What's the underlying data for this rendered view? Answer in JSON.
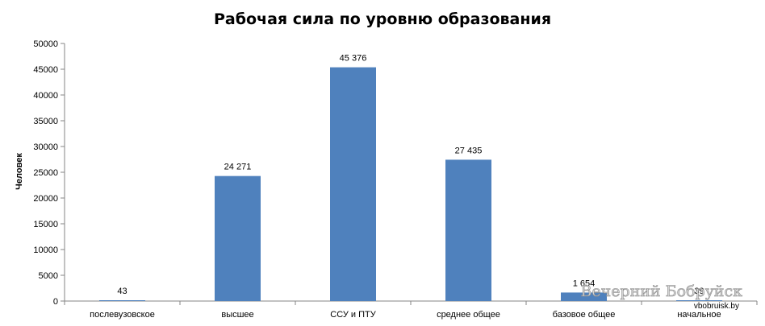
{
  "chart_data": {
    "type": "bar",
    "title": "Рабочая сила по уровню образования",
    "ylabel": "Человек",
    "xlabel": "",
    "ylim": [
      0,
      50000
    ],
    "yticks": [
      0,
      5000,
      10000,
      15000,
      20000,
      25000,
      30000,
      35000,
      40000,
      45000,
      50000
    ],
    "grid": false,
    "categories": [
      "послевузовское",
      "высшее",
      "ССУ и ПТУ",
      "среднее  общее",
      "базовое общее",
      "начальное"
    ],
    "values": [
      43,
      24271,
      45376,
      27435,
      1654,
      39
    ],
    "data_labels": [
      "43",
      "24 271",
      "45 376",
      "27 435",
      "1 654",
      "39"
    ],
    "bar_color": "#4f81bd"
  },
  "watermark": {
    "brand": "Вечерний Бобруйск",
    "site": "vbobruisk.by"
  }
}
